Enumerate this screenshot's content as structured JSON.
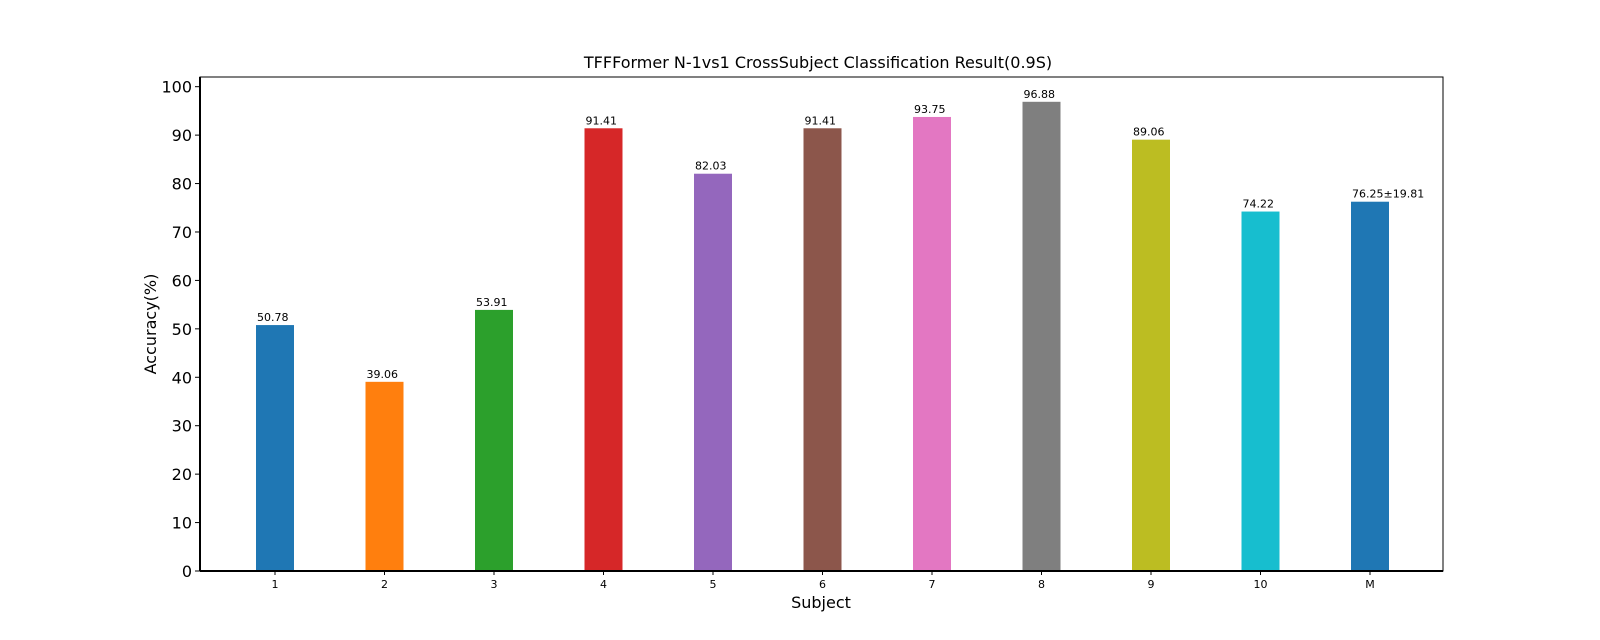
{
  "chart_data": {
    "type": "bar",
    "title": "TFFFormer N-1vs1 CrossSubject Classification Result(0.9S)",
    "xlabel": "Subject",
    "ylabel": "Accuracy(%)",
    "ylim": [
      0,
      102
    ],
    "yticks": [
      0,
      10,
      20,
      30,
      40,
      50,
      60,
      70,
      80,
      90,
      100
    ],
    "categories": [
      "1",
      "2",
      "3",
      "4",
      "5",
      "6",
      "7",
      "8",
      "9",
      "10",
      "M"
    ],
    "values": [
      50.78,
      39.06,
      53.91,
      91.41,
      82.03,
      91.41,
      93.75,
      96.88,
      89.06,
      74.22,
      76.25
    ],
    "value_labels": [
      "50.78",
      "39.06",
      "53.91",
      "91.41",
      "82.03",
      "91.41",
      "93.75",
      "96.88",
      "89.06",
      "74.22",
      "76.25±19.81"
    ],
    "colors": [
      "#1f77b4",
      "#ff7f0e",
      "#2ca02c",
      "#d62728",
      "#9467bd",
      "#8c564b",
      "#e377c2",
      "#7f7f7f",
      "#bcbd22",
      "#17becf",
      "#1f77b4"
    ],
    "label_colors": [
      "#000000",
      "#000000",
      "#000000",
      "#000000",
      "#000000",
      "#000000",
      "#000000",
      "#000000",
      "#000000",
      "#000000",
      "#ff0000"
    ],
    "grid": false,
    "legend": "none"
  }
}
